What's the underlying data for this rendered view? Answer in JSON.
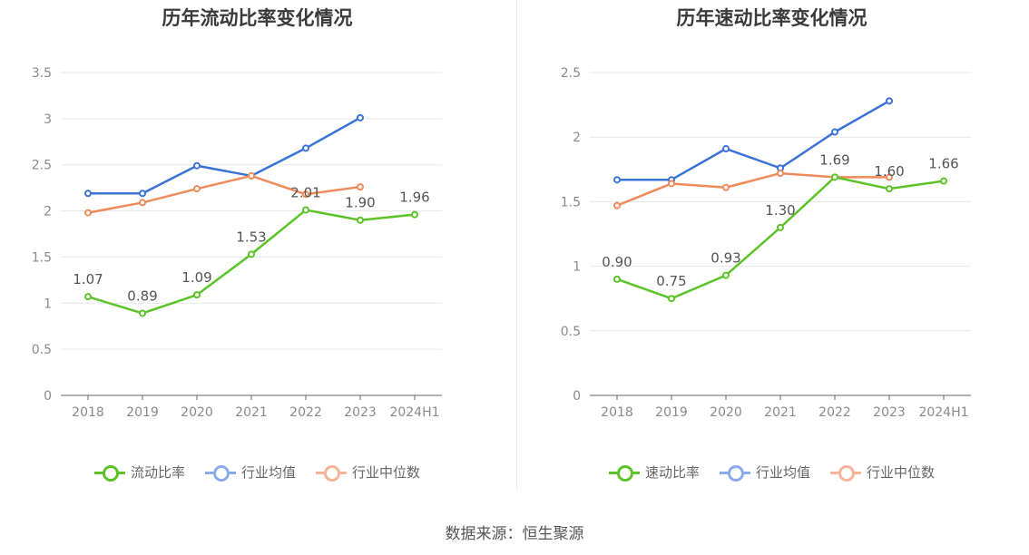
{
  "colors": {
    "company": "#5cc327",
    "avg": "#3b72d8",
    "median": "#f08a5a",
    "legend_avg": "#8aaae8",
    "legend_median": "#f7b29a"
  },
  "source": "数据来源：恒生聚源",
  "chart_data": [
    {
      "type": "line",
      "title": "历年流动比率变化情况",
      "categories": [
        "2018",
        "2019",
        "2020",
        "2021",
        "2022",
        "2023",
        "2024H1"
      ],
      "ylim": [
        0,
        3.5
      ],
      "yticks": [
        "0",
        "0.5",
        "1",
        "1.5",
        "2",
        "2.5",
        "3",
        "3.5"
      ],
      "grid": true,
      "legend_placement": "bottom",
      "series": [
        {
          "name": "流动比率",
          "values": [
            1.07,
            0.89,
            1.09,
            1.53,
            2.01,
            1.9,
            1.96
          ],
          "labels": [
            "1.07",
            "0.89",
            "1.09",
            "1.53",
            "2.01",
            "1.90",
            "1.96"
          ]
        },
        {
          "name": "行业均值",
          "values": [
            2.19,
            2.19,
            2.49,
            2.38,
            2.68,
            3.01,
            null
          ]
        },
        {
          "name": "行业中位数",
          "values": [
            1.98,
            2.09,
            2.24,
            2.38,
            2.18,
            2.26,
            null
          ]
        }
      ]
    },
    {
      "type": "line",
      "title": "历年速动比率变化情况",
      "categories": [
        "2018",
        "2019",
        "2020",
        "2021",
        "2022",
        "2023",
        "2024H1"
      ],
      "ylim": [
        0,
        2.5
      ],
      "yticks": [
        "0",
        "0.5",
        "1",
        "1.5",
        "2",
        "2.5"
      ],
      "grid": true,
      "legend_placement": "bottom",
      "series": [
        {
          "name": "速动比率",
          "values": [
            0.9,
            0.75,
            0.93,
            1.3,
            1.69,
            1.6,
            1.66
          ],
          "labels": [
            "0.90",
            "0.75",
            "0.93",
            "1.30",
            "1.69",
            "1.60",
            "1.66"
          ]
        },
        {
          "name": "行业均值",
          "values": [
            1.67,
            1.67,
            1.91,
            1.76,
            2.04,
            2.28,
            null
          ]
        },
        {
          "name": "行业中位数",
          "values": [
            1.47,
            1.64,
            1.61,
            1.72,
            1.69,
            1.69,
            null
          ]
        }
      ]
    }
  ]
}
